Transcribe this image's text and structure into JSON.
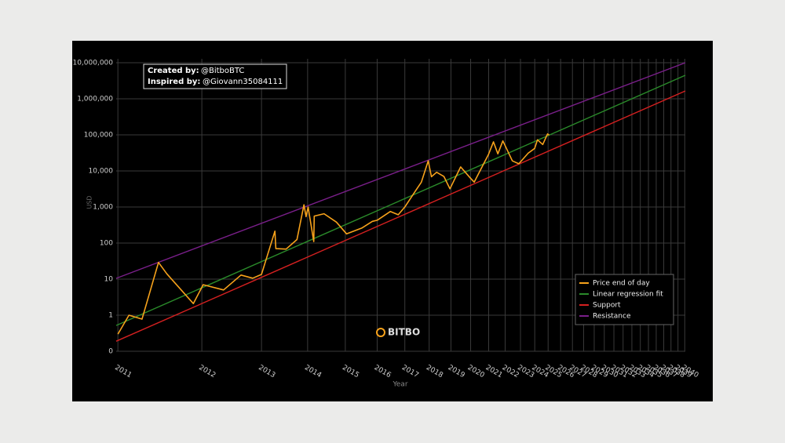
{
  "chart_data": {
    "type": "line",
    "xlabel": "Year",
    "ylabel": "USD",
    "xscale": "log",
    "yscale": "log",
    "grid": true,
    "legend": "lower right",
    "annotation": {
      "created_label": "Created by:",
      "created_value": "@BitboBTC",
      "inspired_label": "Inspired by:",
      "inspired_value": "@Giovann35084111"
    },
    "watermark": "BITBO",
    "xlim": [
      722,
      11350
    ],
    "ylim": [
      0.1,
      10000000
    ],
    "xticks": [
      {
        "value": 728,
        "label": "2011"
      },
      {
        "value": 1093,
        "label": "2012"
      },
      {
        "value": 1459,
        "label": "2013"
      },
      {
        "value": 1824,
        "label": "2014"
      },
      {
        "value": 2189,
        "label": "2015"
      },
      {
        "value": 2554,
        "label": "2016"
      },
      {
        "value": 2920,
        "label": "2017"
      },
      {
        "value": 3285,
        "label": "2018"
      },
      {
        "value": 3650,
        "label": "2019"
      },
      {
        "value": 4015,
        "label": "2020"
      },
      {
        "value": 4381,
        "label": "2021"
      },
      {
        "value": 4746,
        "label": "2022"
      },
      {
        "value": 5111,
        "label": "2023"
      },
      {
        "value": 5476,
        "label": "2024"
      },
      {
        "value": 5842,
        "label": "2025"
      },
      {
        "value": 6207,
        "label": "2026"
      },
      {
        "value": 6572,
        "label": "2027"
      },
      {
        "value": 6937,
        "label": "2028"
      },
      {
        "value": 7303,
        "label": "2029"
      },
      {
        "value": 7668,
        "label": "2030"
      },
      {
        "value": 8033,
        "label": "2031"
      },
      {
        "value": 8398,
        "label": "2032"
      },
      {
        "value": 8764,
        "label": "2033"
      },
      {
        "value": 9129,
        "label": "2034"
      },
      {
        "value": 9494,
        "label": "2035"
      },
      {
        "value": 9859,
        "label": "2036"
      },
      {
        "value": 10225,
        "label": "2037"
      },
      {
        "value": 10590,
        "label": "2038"
      },
      {
        "value": 10955,
        "label": "2039"
      },
      {
        "value": 11320,
        "label": "2040"
      }
    ],
    "yticks": [
      {
        "value": 10000000,
        "label": "10,000,000"
      },
      {
        "value": 1000000,
        "label": "1,000,000"
      },
      {
        "value": 100000,
        "label": "100,000"
      },
      {
        "value": 10000,
        "label": "10,000"
      },
      {
        "value": 1000,
        "label": "1,000"
      },
      100,
      10,
      1,
      {
        "value": 0.1,
        "label": "0"
      }
    ],
    "series": [
      {
        "name": "Price end of day",
        "color": "#f7a21b",
        "x": [
          728,
          768,
          818,
          886,
          923,
          1049,
          1100,
          1214,
          1321,
          1398,
          1459,
          1557,
          1564,
          1644,
          1732,
          1792,
          1810,
          1828,
          1879,
          1883,
          1975,
          2097,
          2202,
          2370,
          2496,
          2554,
          2723,
          2828,
          2920,
          3081,
          3163,
          3270,
          3321,
          3405,
          3528,
          3633,
          3826,
          4000,
          4086,
          4228,
          4380,
          4484,
          4581,
          4694,
          4914,
          5070,
          5304,
          5475,
          5549,
          5693,
          5827,
          5875
        ],
        "values": [
          0.3,
          1.0,
          0.78,
          29,
          14,
          2.1,
          7,
          5,
          13,
          10.6,
          13.5,
          214,
          70,
          68,
          125,
          1150,
          540,
          1000,
          110,
          560,
          650,
          380,
          180,
          260,
          400,
          430,
          750,
          610,
          1000,
          2900,
          4900,
          19100,
          6900,
          9200,
          7000,
          3200,
          12900,
          6600,
          4900,
          11800,
          29000,
          64000,
          29800,
          68000,
          19000,
          15800,
          31000,
          42000,
          73000,
          54000,
          106000,
          98000
        ]
      },
      {
        "name": "Linear regression fit",
        "color": "#2a8a2a",
        "x": [
          722,
          11350
        ],
        "values": [
          0.52,
          4500000
        ]
      },
      {
        "name": "Support",
        "color": "#d42020",
        "x": [
          722,
          11350
        ],
        "values": [
          0.19,
          1650000
        ]
      },
      {
        "name": "Resistance",
        "color": "#7a1f8a",
        "x": [
          722,
          11350
        ],
        "values": [
          10.5,
          10000000
        ]
      }
    ]
  }
}
